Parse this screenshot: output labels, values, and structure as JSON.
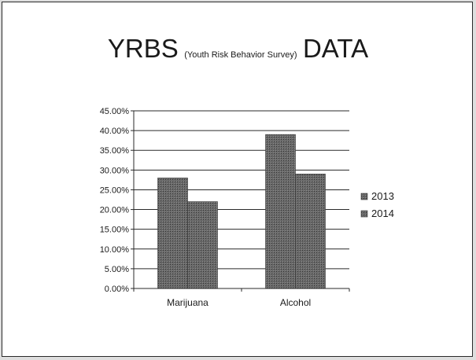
{
  "slide": {
    "title_main_left": "YRBS",
    "title_sub": "(Youth Risk Behavior Survey)",
    "title_main_right": "DATA"
  },
  "chart_data": {
    "type": "bar",
    "categories": [
      "Marijuana",
      "Alcohol"
    ],
    "series": [
      {
        "name": "2013",
        "values": [
          0.28,
          0.39
        ]
      },
      {
        "name": "2014",
        "values": [
          0.22,
          0.29
        ]
      }
    ],
    "yticks": [
      "0.00%",
      "5.00%",
      "10.00%",
      "15.00%",
      "20.00%",
      "25.00%",
      "30.00%",
      "35.00%",
      "40.00%",
      "45.00%"
    ],
    "ylim": [
      0,
      0.45
    ],
    "grid": true,
    "legend_position": "right",
    "colors": {
      "bar": "#555555",
      "grid": "#2a2a2a"
    }
  }
}
